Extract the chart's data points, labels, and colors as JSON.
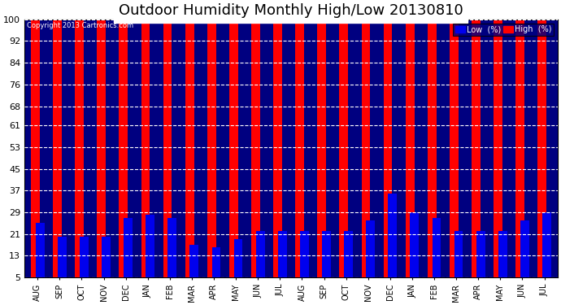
{
  "title": "Outdoor Humidity Monthly High/Low 20130810",
  "copyright": "Copyright 2013 Cartronics.com",
  "categories": [
    "AUG",
    "SEP",
    "OCT",
    "NOV",
    "DEC",
    "JAN",
    "FEB",
    "MAR",
    "APR",
    "MAY",
    "JUN",
    "JUL",
    "AUG",
    "SEP",
    "OCT",
    "NOV",
    "DEC",
    "JAN",
    "FEB",
    "MAR",
    "APR",
    "MAY",
    "JUN",
    "JUL"
  ],
  "high_values": [
    100,
    100,
    100,
    100,
    100,
    100,
    100,
    100,
    100,
    100,
    100,
    100,
    100,
    100,
    100,
    100,
    100,
    100,
    100,
    100,
    100,
    100,
    100,
    100
  ],
  "low_values": [
    25,
    20,
    20,
    20,
    27,
    28,
    27,
    17,
    16,
    19,
    22,
    22,
    22,
    22,
    22,
    26,
    36,
    29,
    27,
    22,
    22,
    22,
    26,
    29
  ],
  "high_color": "#FF0000",
  "low_color": "#0000EE",
  "bg_color": "#000080",
  "plot_bg_color": "#000080",
  "grid_color": "#FFFFFF",
  "yticks": [
    5,
    13,
    21,
    29,
    37,
    45,
    53,
    61,
    68,
    76,
    84,
    92,
    100
  ],
  "ylim": [
    5,
    100
  ],
  "title_fontsize": 13,
  "legend_label_low": "Low  (%)",
  "legend_label_high": "High  (%)",
  "bar_width": 0.4,
  "bar_gap": 0.02
}
